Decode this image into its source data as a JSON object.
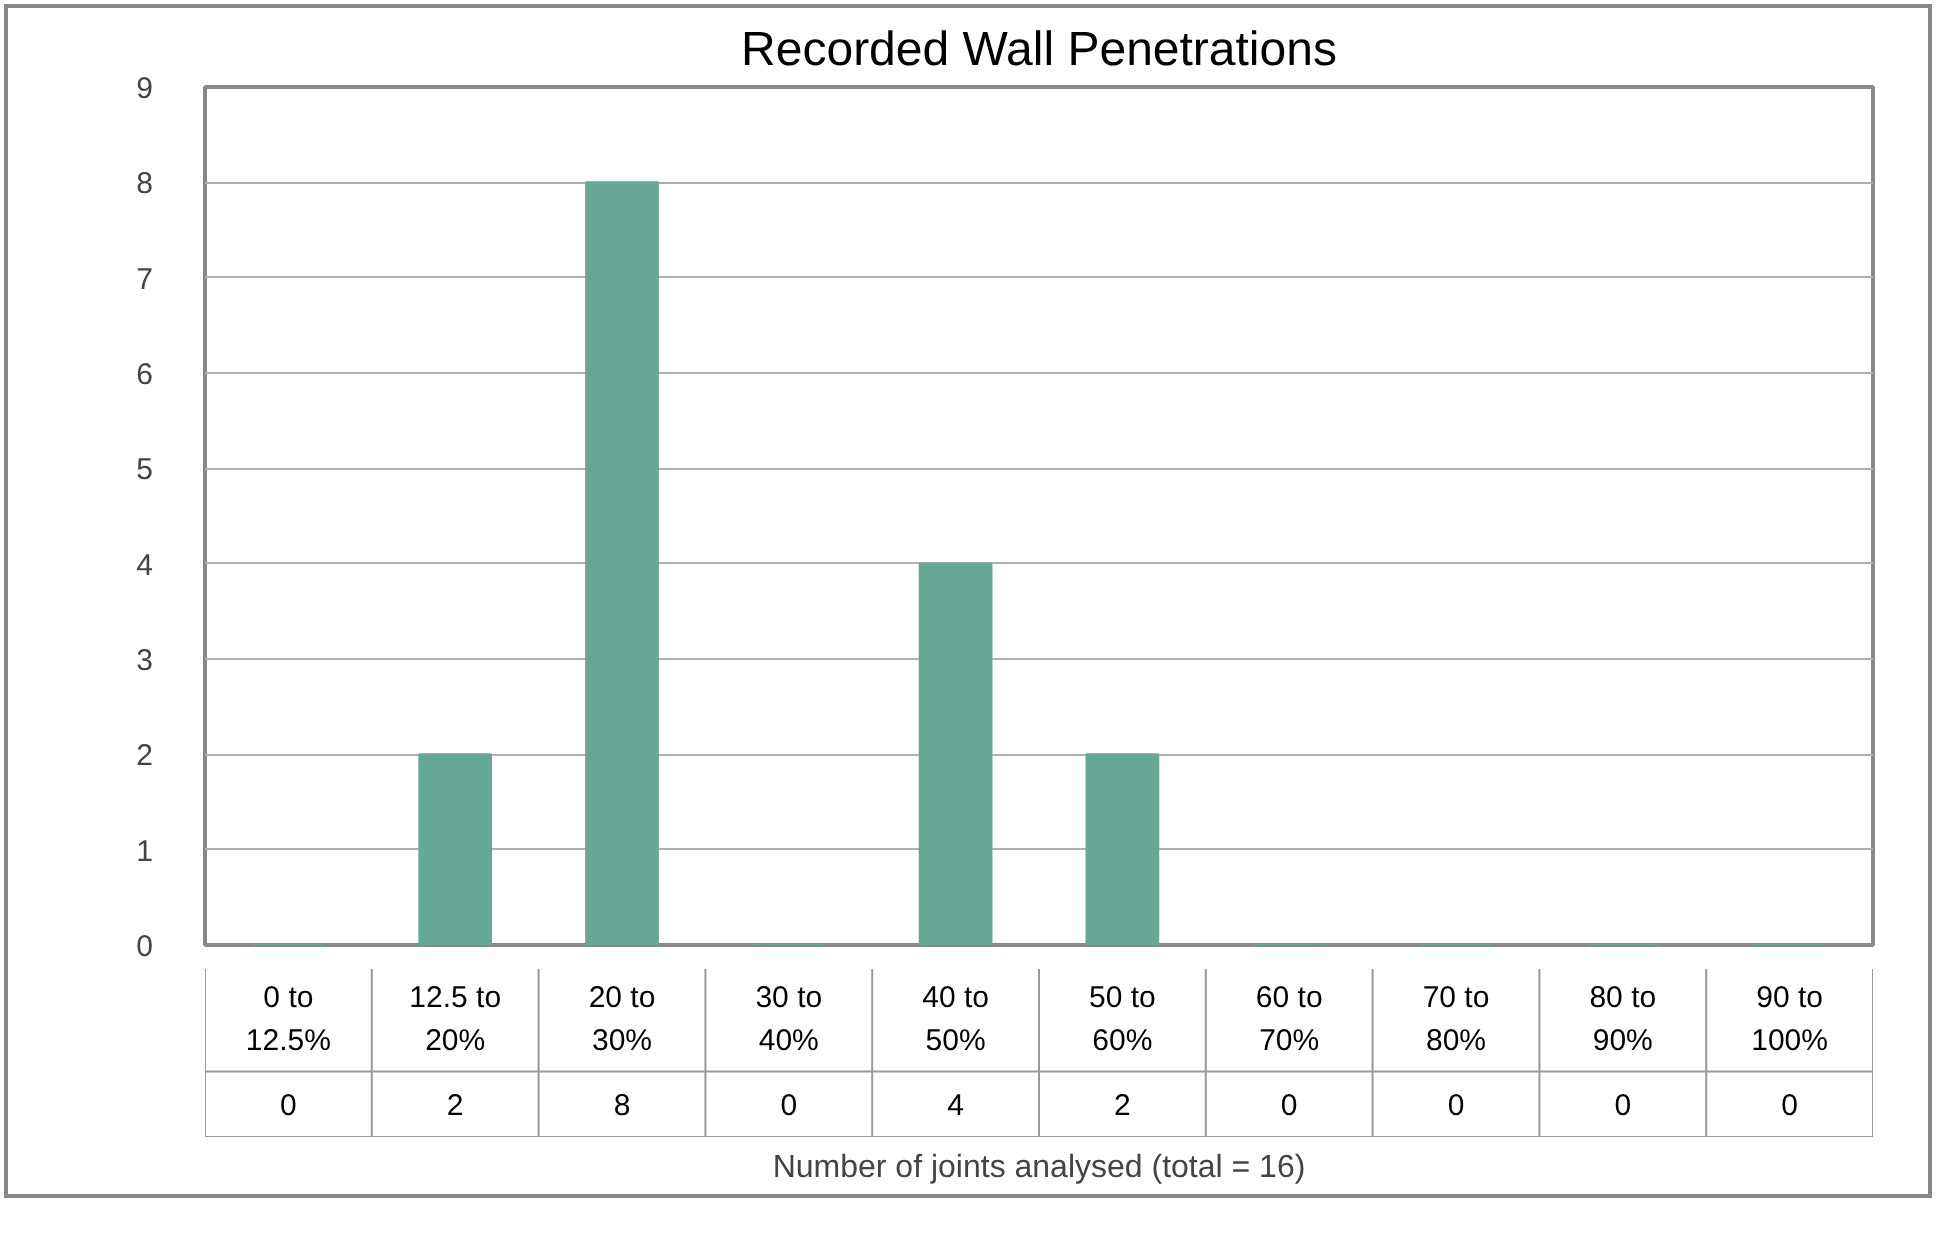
{
  "chart_data": {
    "type": "bar",
    "title": "Recorded Wall Penetrations",
    "categories": [
      "0 to\n12.5%",
      "12.5 to\n20%",
      "20 to\n30%",
      "30 to\n40%",
      "40 to\n50%",
      "50 to\n60%",
      "60 to\n70%",
      "70 to\n80%",
      "80 to\n90%",
      "90 to\n100%"
    ],
    "values": [
      0,
      2,
      8,
      0,
      4,
      2,
      0,
      0,
      0,
      0
    ],
    "color": "#65a896",
    "ylim": [
      0,
      9
    ],
    "yticks": [
      0,
      1,
      2,
      3,
      4,
      5,
      6,
      7,
      8,
      9
    ],
    "grid": "y",
    "data_labels": true,
    "xlabel": "Number of joints analysed (total = 16)"
  }
}
